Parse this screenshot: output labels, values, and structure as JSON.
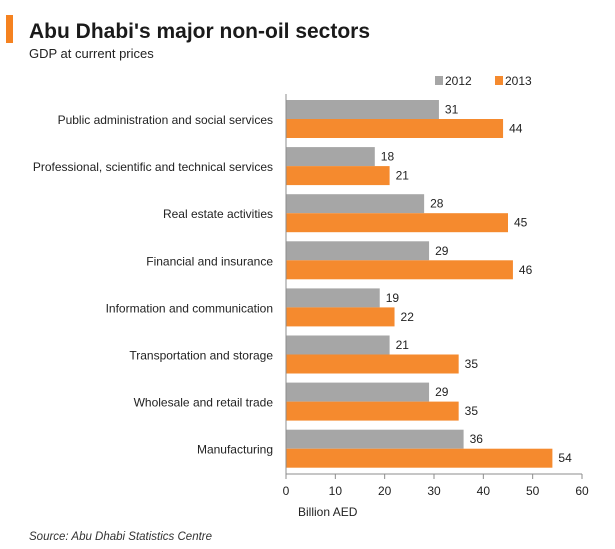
{
  "header": {
    "title": "Abu Dhabi's major non-oil sectors",
    "subtitle": "GDP at current prices",
    "accent_color": "#F58220"
  },
  "source": "Source: Abu Dhabi Statistics Centre",
  "chart_data": {
    "type": "bar",
    "orientation": "horizontal",
    "categories": [
      "Public administration and social services",
      "Professional, scientific and technical services",
      "Real estate activities",
      "Financial and insurance",
      "Information and communication",
      "Transportation and storage",
      "Wholesale and retail trade",
      "Manufacturing"
    ],
    "series": [
      {
        "name": "2012",
        "color": "#A6A6A6",
        "values": [
          31,
          18,
          28,
          29,
          19,
          21,
          29,
          36
        ]
      },
      {
        "name": "2013",
        "color": "#F58A2E",
        "values": [
          44,
          21,
          45,
          46,
          22,
          35,
          35,
          54
        ]
      }
    ],
    "xlabel": "Billion AED",
    "ylabel": "",
    "xlim": [
      0,
      60
    ],
    "xticks": [
      0,
      10,
      20,
      30,
      40,
      50,
      60
    ],
    "grid": false,
    "legend_position": "top-right",
    "data_labels": true
  }
}
